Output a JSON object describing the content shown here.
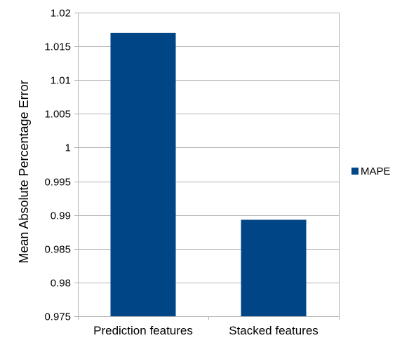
{
  "chart_data": {
    "type": "bar",
    "title": "",
    "xlabel": "",
    "ylabel": "Mean Absolute Percentage Error",
    "categories": [
      "Prediction features",
      "Stacked features"
    ],
    "series": [
      {
        "name": "MAPE",
        "values": [
          1.017,
          0.9893
        ]
      }
    ],
    "ylim": [
      0.975,
      1.02
    ],
    "yticks": [
      0.975,
      0.98,
      0.985,
      0.99,
      0.995,
      1,
      1.005,
      1.01,
      1.015,
      1.02
    ],
    "ytick_labels": [
      "0.975",
      "0.98",
      "0.985",
      "0.99",
      "0.995",
      "1",
      "1.005",
      "1.01",
      "1.015",
      "1.02"
    ],
    "grid": true,
    "legend_position": "right",
    "colors": {
      "bar": "#004586",
      "grid": "#b3b3b3",
      "axis": "#b3b3b3"
    }
  }
}
